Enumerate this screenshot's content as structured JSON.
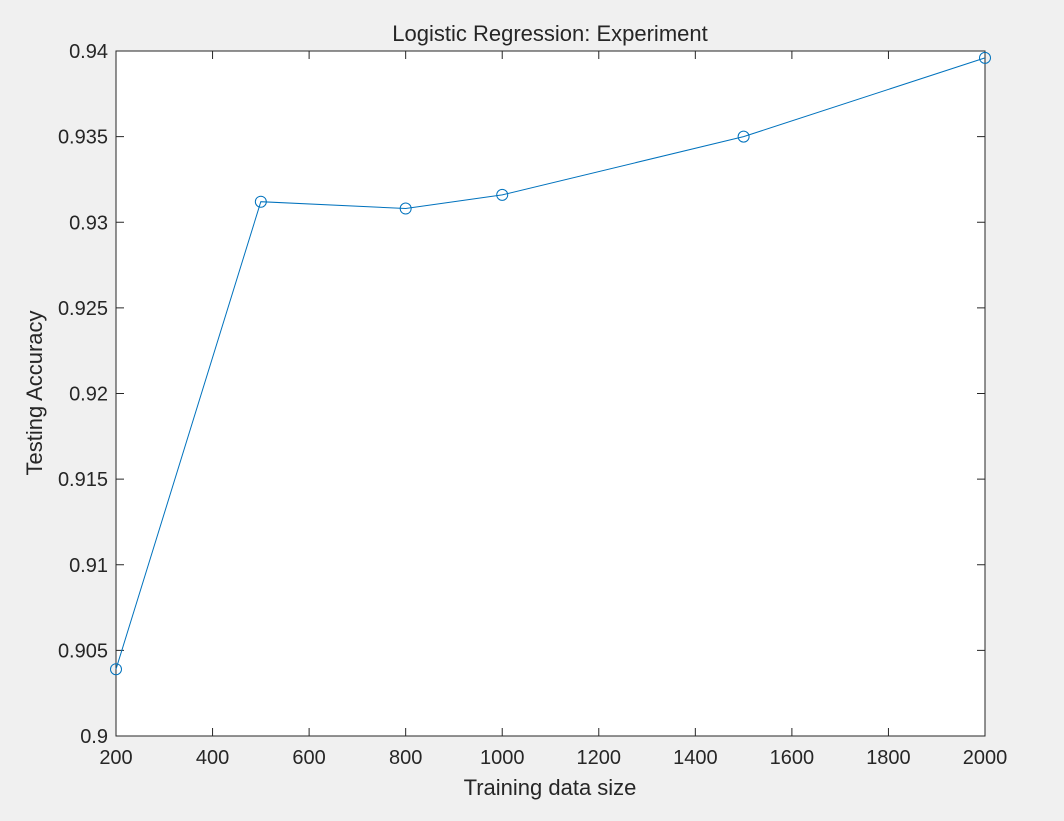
{
  "chart_data": {
    "type": "line",
    "title": "Logistic Regression: Experiment",
    "xlabel": "Training data size",
    "ylabel": "Testing Accuracy",
    "xlim": [
      200,
      2000
    ],
    "ylim": [
      0.9,
      0.94
    ],
    "xticks": [
      200,
      400,
      600,
      800,
      1000,
      1200,
      1400,
      1600,
      1800,
      2000
    ],
    "xtick_labels": [
      "200",
      "400",
      "600",
      "800",
      "1000",
      "1200",
      "1400",
      "1600",
      "1800",
      "2000"
    ],
    "yticks": [
      0.9,
      0.905,
      0.91,
      0.915,
      0.92,
      0.925,
      0.93,
      0.935,
      0.94
    ],
    "ytick_labels": [
      "0.9",
      "0.905",
      "0.91",
      "0.915",
      "0.92",
      "0.925",
      "0.93",
      "0.935",
      "0.94"
    ],
    "grid": false,
    "series": [
      {
        "color": "#0072bd",
        "marker": "circle",
        "x": [
          200,
          500,
          800,
          1000,
          1500,
          2000
        ],
        "y": [
          0.9039,
          0.9312,
          0.9308,
          0.9316,
          0.935,
          0.9396
        ]
      }
    ]
  }
}
